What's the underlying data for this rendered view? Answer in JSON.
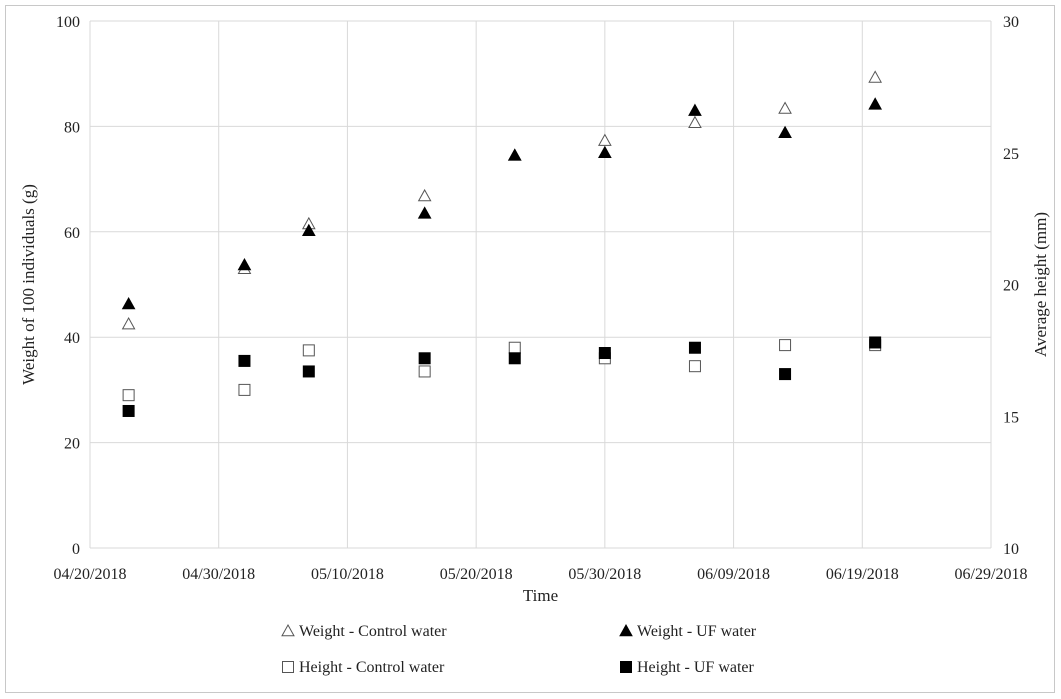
{
  "chart_data": {
    "type": "scatter",
    "xlabel": "Time",
    "ylabel": "Weight of 100 individuals (g)",
    "y2label": "Average height (mm)",
    "x_ticks": [
      "04/20/2018",
      "04/30/2018",
      "05/10/2018",
      "05/20/2018",
      "05/30/2018",
      "06/09/2018",
      "06/19/2018",
      "06/29/2018"
    ],
    "xlim": [
      "2018-04-20",
      "2018-06-29"
    ],
    "ylim": [
      0,
      100
    ],
    "y_ticks": [
      0,
      20,
      40,
      60,
      80,
      100
    ],
    "y2lim": [
      10,
      30
    ],
    "y2_ticks": [
      10,
      15,
      20,
      25,
      30
    ],
    "grid": true,
    "legend_position": "bottom",
    "series": [
      {
        "name": "Weight - Control water",
        "axis": "left",
        "marker": "triangle-open",
        "points": [
          {
            "x": "2018-04-23",
            "y": 42.5
          },
          {
            "x": "2018-05-02",
            "y": 53.0
          },
          {
            "x": "2018-05-07",
            "y": 61.5
          },
          {
            "x": "2018-05-16",
            "y": 66.8
          },
          {
            "x": "2018-05-23",
            "y": 74.5
          },
          {
            "x": "2018-05-30",
            "y": 77.3
          },
          {
            "x": "2018-06-06",
            "y": 80.7
          },
          {
            "x": "2018-06-13",
            "y": 83.4
          },
          {
            "x": "2018-06-20",
            "y": 89.3
          }
        ]
      },
      {
        "name": "Weight - UF water",
        "axis": "left",
        "marker": "triangle-filled",
        "points": [
          {
            "x": "2018-04-23",
            "y": 46.3
          },
          {
            "x": "2018-05-02",
            "y": 53.7
          },
          {
            "x": "2018-05-07",
            "y": 60.2
          },
          {
            "x": "2018-05-16",
            "y": 63.5
          },
          {
            "x": "2018-05-23",
            "y": 74.5
          },
          {
            "x": "2018-05-30",
            "y": 75.0
          },
          {
            "x": "2018-06-06",
            "y": 83.0
          },
          {
            "x": "2018-06-13",
            "y": 78.8
          },
          {
            "x": "2018-06-20",
            "y": 84.2
          }
        ]
      },
      {
        "name": "Height - Control water",
        "axis": "right",
        "marker": "square-open",
        "points": [
          {
            "x": "2018-04-23",
            "y": 15.8
          },
          {
            "x": "2018-05-02",
            "y": 16.0
          },
          {
            "x": "2018-05-07",
            "y": 17.5
          },
          {
            "x": "2018-05-16",
            "y": 16.7
          },
          {
            "x": "2018-05-23",
            "y": 17.6
          },
          {
            "x": "2018-05-30",
            "y": 17.2
          },
          {
            "x": "2018-06-06",
            "y": 16.9
          },
          {
            "x": "2018-06-13",
            "y": 17.7
          },
          {
            "x": "2018-06-20",
            "y": 17.7
          }
        ]
      },
      {
        "name": "Height - UF water",
        "axis": "right",
        "marker": "square-filled",
        "points": [
          {
            "x": "2018-04-23",
            "y": 15.2
          },
          {
            "x": "2018-05-02",
            "y": 17.1
          },
          {
            "x": "2018-05-07",
            "y": 16.7
          },
          {
            "x": "2018-05-16",
            "y": 17.2
          },
          {
            "x": "2018-05-23",
            "y": 17.2
          },
          {
            "x": "2018-05-30",
            "y": 17.4
          },
          {
            "x": "2018-06-06",
            "y": 17.6
          },
          {
            "x": "2018-06-13",
            "y": 16.6
          },
          {
            "x": "2018-06-20",
            "y": 17.8
          }
        ]
      }
    ]
  }
}
